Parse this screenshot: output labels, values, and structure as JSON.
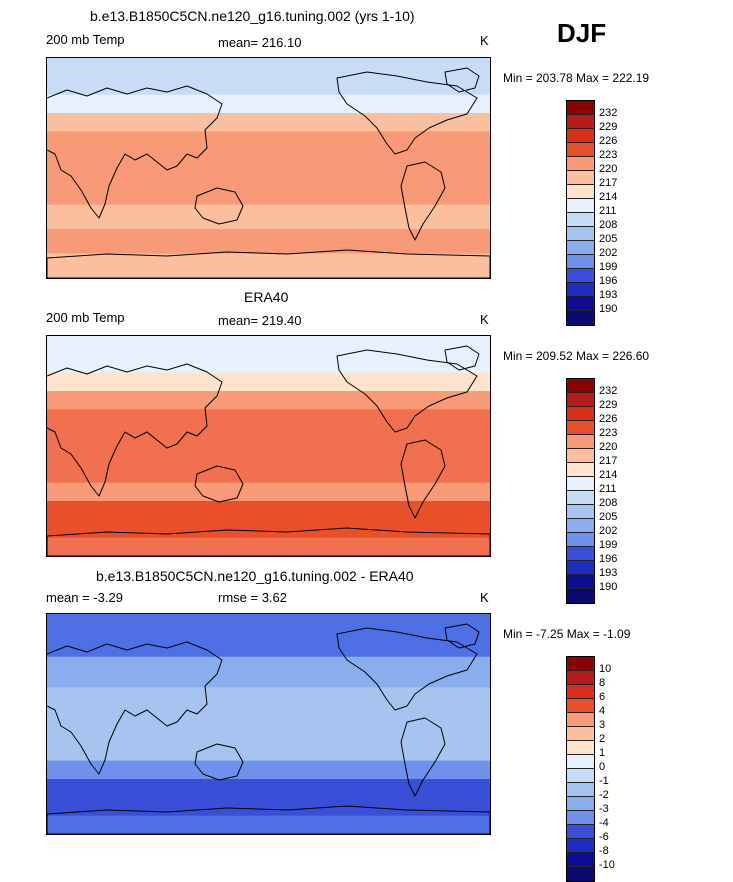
{
  "season": "DJF",
  "colors": {
    "temp_scale": [
      "#8b0000",
      "#b71c1c",
      "#d6301a",
      "#e8502a",
      "#f07050",
      "#f89a78",
      "#fbbf9e",
      "#fde2cc",
      "#e8f1fb",
      "#c6dbf5",
      "#a7c4f0",
      "#8aaeed",
      "#6f91ec",
      "#4f6fe6",
      "#3a4fd8",
      "#1f2cc0",
      "#0d0d96",
      "#0a0a70"
    ],
    "diff_scale": [
      "#8b0000",
      "#b71c1c",
      "#d6301a",
      "#e8502a",
      "#f07050",
      "#f89a78",
      "#fbbf9e",
      "#fde2cc",
      "#e8f1fb",
      "#c6dbf5",
      "#a7c4f0",
      "#8aaeed",
      "#6f91ec",
      "#4f6fe6",
      "#3a4fd8",
      "#1f2cc0",
      "#0d0d96",
      "#0a0a70"
    ]
  },
  "chart_data": [
    {
      "type": "heatmap",
      "title": "b.e13.B1850C5CN.ne120_g16.tuning.002 (yrs 1-10)",
      "left_label": "200 mb Temp",
      "center_label": "mean= 216.10",
      "units": "K",
      "stats": "Min = 203.78 Max = 222.19",
      "levels": [
        "232",
        "229",
        "226",
        "223",
        "220",
        "217",
        "214",
        "211",
        "208",
        "205",
        "202",
        "199",
        "196",
        "193",
        "190"
      ],
      "bands_lat": [
        [
          90,
          60,
          "c9dcf5"
        ],
        [
          60,
          45,
          "e8f1fb"
        ],
        [
          45,
          30,
          "fbbf9e"
        ],
        [
          30,
          -30,
          "f89a78"
        ],
        [
          -30,
          -50,
          "fbbf9e"
        ],
        [
          -50,
          -70,
          "f89a78"
        ],
        [
          -70,
          -90,
          "fbbf9e"
        ]
      ]
    },
    {
      "type": "heatmap",
      "title": "ERA40",
      "left_label": "200 mb Temp",
      "center_label": "mean= 219.40",
      "units": "K",
      "stats": "Min = 209.52 Max = 226.60",
      "levels": [
        "232",
        "229",
        "226",
        "223",
        "220",
        "217",
        "214",
        "211",
        "208",
        "205",
        "202",
        "199",
        "196",
        "193",
        "190"
      ],
      "bands_lat": [
        [
          90,
          60,
          "e8f1fb"
        ],
        [
          60,
          45,
          "fde2cc"
        ],
        [
          45,
          30,
          "f89a78"
        ],
        [
          30,
          -30,
          "f07050"
        ],
        [
          -30,
          -45,
          "f89a78"
        ],
        [
          -45,
          -75,
          "e8502a"
        ],
        [
          -75,
          -90,
          "f07050"
        ]
      ]
    },
    {
      "type": "heatmap",
      "title": "b.e13.B1850C5CN.ne120_g16.tuning.002 - ERA40",
      "left_label": "mean =  -3.29",
      "center_label": "rmse =   3.62",
      "units": "K",
      "stats": "Min =  -7.25 Max =  -1.09",
      "levels": [
        "10",
        "8",
        "6",
        "4",
        "3",
        "2",
        "1",
        "0",
        "-1",
        "-2",
        "-3",
        "-4",
        "-6",
        "-8",
        "-10"
      ],
      "bands_lat": [
        [
          90,
          55,
          "4f6fe6"
        ],
        [
          55,
          30,
          "8aaeed"
        ],
        [
          30,
          -30,
          "a7c4f0"
        ],
        [
          -30,
          -45,
          "6f91ec"
        ],
        [
          -45,
          -75,
          "3a4fd8"
        ],
        [
          -75,
          -90,
          "4f6fe6"
        ]
      ]
    }
  ]
}
